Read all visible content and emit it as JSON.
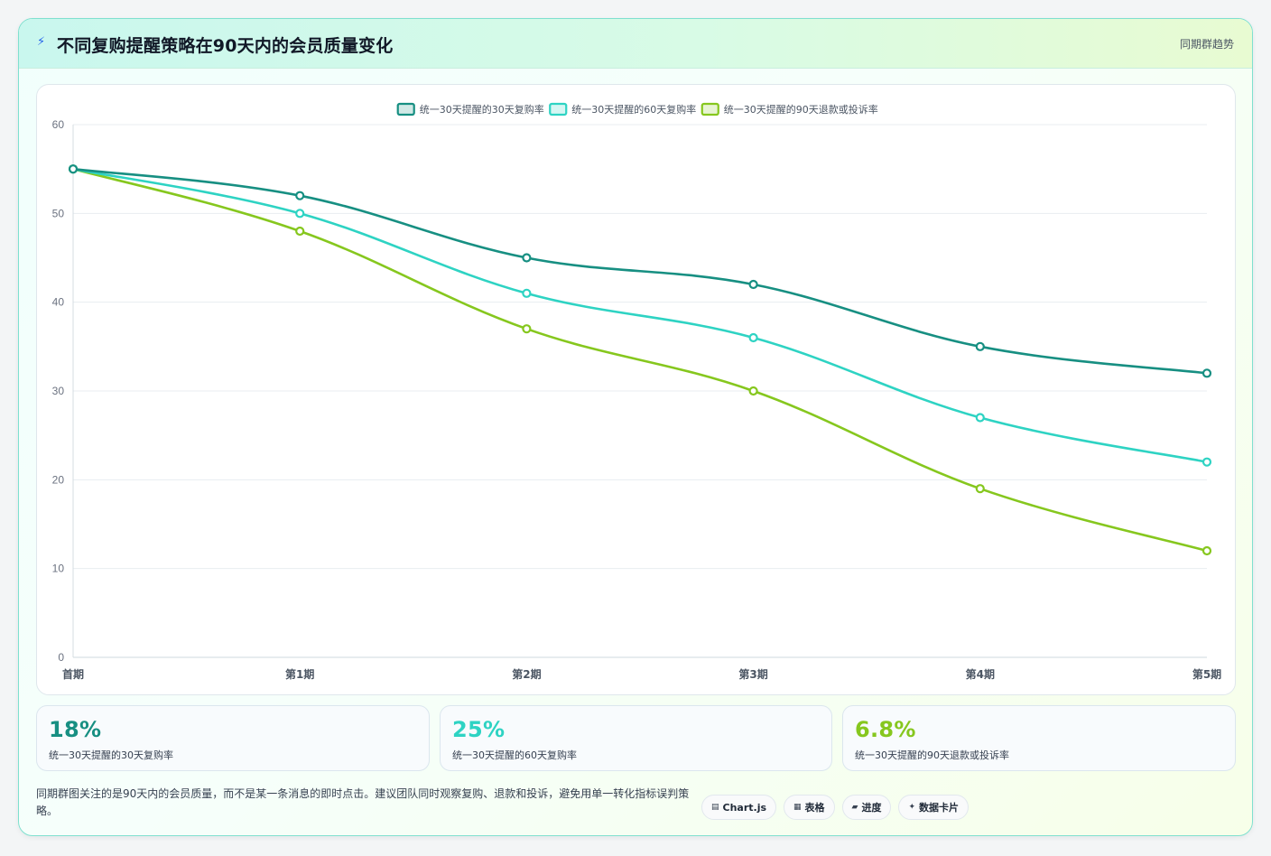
{
  "header": {
    "icon": "lightning-icon",
    "title": "不同复购提醒策略在90天内的会员质量变化",
    "tag": "同期群趋势"
  },
  "chart_data": {
    "type": "line",
    "categories": [
      "首期",
      "第1期",
      "第2期",
      "第3期",
      "第4期",
      "第5期"
    ],
    "series": [
      {
        "name": "统一30天提醒的30天复购率",
        "color": "#178f82",
        "values": [
          55,
          52,
          45,
          42,
          35,
          32
        ]
      },
      {
        "name": "统一30天提醒的60天复购率",
        "color": "#2ed3c3",
        "values": [
          55,
          50,
          41,
          36,
          27,
          22
        ]
      },
      {
        "name": "统一30天提醒的90天退款或投诉率",
        "color": "#86c71e",
        "values": [
          55,
          48,
          37,
          30,
          19,
          12
        ]
      }
    ],
    "ylim": [
      0,
      60
    ],
    "yticks": [
      0,
      10,
      20,
      30,
      40,
      50,
      60
    ],
    "grid": true,
    "legend": "top"
  },
  "stats": [
    {
      "value": "18%",
      "label": "统一30天提醒的30天复购率",
      "color": "#178f82"
    },
    {
      "value": "25%",
      "label": "统一30天提醒的60天复购率",
      "color": "#2ed3c3"
    },
    {
      "value": "6.8%",
      "label": "统一30天提醒的90天退款或投诉率",
      "color": "#86c71e"
    }
  ],
  "note": "同期群图关注的是90天内的会员质量，而不是某一条消息的即时点击。建议团队同时观察复购、退款和投诉，避免用单一转化指标误判策略。",
  "chips": [
    {
      "icon": "chart-icon",
      "glyph": "▤",
      "label": "Chart.js"
    },
    {
      "icon": "table-icon",
      "glyph": "▦",
      "label": "表格"
    },
    {
      "icon": "progress-icon",
      "glyph": "▰",
      "label": "进度"
    },
    {
      "icon": "sparkle-icon",
      "glyph": "✦",
      "label": "数据卡片"
    }
  ]
}
